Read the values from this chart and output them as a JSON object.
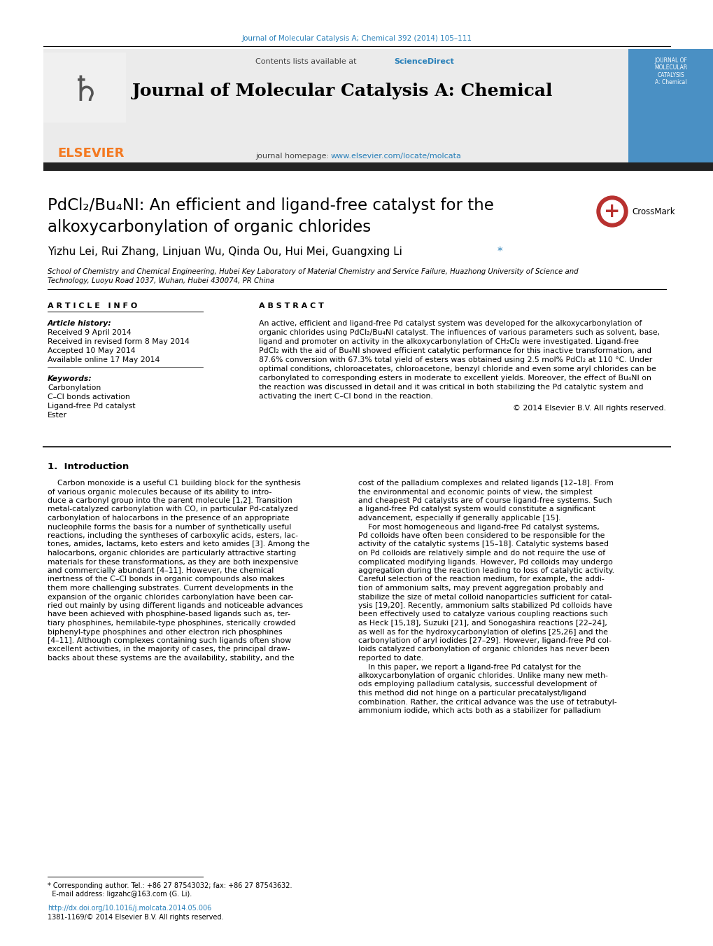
{
  "journal_citation": "Journal of Molecular Catalysis A; Chemical 392 (2014) 105–111",
  "journal_name": "Journal of Molecular Catalysis A: Chemical",
  "journal_homepage": "journal homepage: www.elsevier.com/locate/molcata",
  "contents_line": "Contents lists available at ScienceDirect",
  "article_title_line1": "PdCl₂/Bu₄NI: An efficient and ligand-free catalyst for the",
  "article_title_line2": "alkoxycarbonylation of organic chlorides",
  "authors": "Yizhu Lei, Rui Zhang, Linjuan Wu, Qinda Ou, Hui Mei, Guangxing Li",
  "affiliation_line1": "School of Chemistry and Chemical Engineering, Hubei Key Laboratory of Material Chemistry and Service Failure, Huazhong University of Science and",
  "affiliation_line2": "Technology, Luoyu Road 1037, Wuhan, Hubei 430074, PR China",
  "article_info_header": "A R T I C L E   I N F O",
  "abstract_header": "A B S T R A C T",
  "article_history_label": "Article history:",
  "received": "Received 9 April 2014",
  "received_revised": "Received in revised form 8 May 2014",
  "accepted": "Accepted 10 May 2014",
  "available": "Available online 17 May 2014",
  "keywords_label": "Keywords:",
  "keywords": [
    "Carbonylation",
    "C–Cl bonds activation",
    "Ligand-free Pd catalyst",
    "Ester"
  ],
  "abstract_lines": [
    "An active, efficient and ligand-free Pd catalyst system was developed for the alkoxycarbonylation of",
    "organic chlorides using PdCl₂/Bu₄NI catalyst. The influences of various parameters such as solvent, base,",
    "ligand and promoter on activity in the alkoxycarbonylation of CH₂Cl₂ were investigated. Ligand-free",
    "PdCl₂ with the aid of Bu₄NI showed efficient catalytic performance for this inactive transformation, and",
    "87.6% conversion with 67.3% total yield of esters was obtained using 2.5 mol% PdCl₂ at 110 °C. Under",
    "optimal conditions, chloroacetates, chloroacetone, benzyl chloride and even some aryl chlorides can be",
    "carbonylated to corresponding esters in moderate to excellent yields. Moreover, the effect of Bu₄NI on",
    "the reaction was discussed in detail and it was critical in both stabilizing the Pd catalytic system and",
    "activating the inert C–Cl bond in the reaction."
  ],
  "copyright": "© 2014 Elsevier B.V. All rights reserved.",
  "section1_header": "1.  Introduction",
  "col1_lines": [
    "    Carbon monoxide is a useful C1 building block for the synthesis",
    "of various organic molecules because of its ability to intro-",
    "duce a carbonyl group into the parent molecule [1,2]. Transition",
    "metal-catalyzed carbonylation with CO, in particular Pd-catalyzed",
    "carbonylation of halocarbons in the presence of an appropriate",
    "nucleophile forms the basis for a number of synthetically useful",
    "reactions, including the syntheses of carboxylic acids, esters, lac-",
    "tones, amides, lactams, keto esters and keto amides [3]. Among the",
    "halocarbons, organic chlorides are particularly attractive starting",
    "materials for these transformations, as they are both inexpensive",
    "and commercially abundant [4–11]. However, the chemical",
    "inertness of the C–Cl bonds in organic compounds also makes",
    "them more challenging substrates. Current developments in the",
    "expansion of the organic chlorides carbonylation have been car-",
    "ried out mainly by using different ligands and noticeable advances",
    "have been achieved with phosphine-based ligands such as, ter-",
    "tiary phosphines, hemilabile-type phosphines, sterically crowded",
    "biphenyl-type phosphines and other electron rich phosphines",
    "[4–11]. Although complexes containing such ligands often show",
    "excellent activities, in the majority of cases, the principal draw-",
    "backs about these systems are the availability, stability, and the"
  ],
  "col2_lines": [
    "cost of the palladium complexes and related ligands [12–18]. From",
    "the environmental and economic points of view, the simplest",
    "and cheapest Pd catalysts are of course ligand-free systems. Such",
    "a ligand-free Pd catalyst system would constitute a significant",
    "advancement, especially if generally applicable [15].",
    "    For most homogeneous and ligand-free Pd catalyst systems,",
    "Pd colloids have often been considered to be responsible for the",
    "activity of the catalytic systems [15–18]. Catalytic systems based",
    "on Pd colloids are relatively simple and do not require the use of",
    "complicated modifying ligands. However, Pd colloids may undergo",
    "aggregation during the reaction leading to loss of catalytic activity.",
    "Careful selection of the reaction medium, for example, the addi-",
    "tion of ammonium salts, may prevent aggregation probably and",
    "stabilize the size of metal colloid nanoparticles sufficient for catal-",
    "ysis [19,20]. Recently, ammonium salts stabilized Pd colloids have",
    "been effectively used to catalyze various coupling reactions such",
    "as Heck [15,18], Suzuki [21], and Sonogashira reactions [22–24],",
    "as well as for the hydroxycarbonylation of olefins [25,26] and the",
    "carbonylation of aryl iodides [27–29]. However, ligand-free Pd col-",
    "loids catalyzed carbonylation of organic chlorides has never been",
    "reported to date.",
    "    In this paper, we report a ligand-free Pd catalyst for the",
    "alkoxycarbonylation of organic chlorides. Unlike many new meth-",
    "ods employing palladium catalysis, successful development of",
    "this method did not hinge on a particular precatalyst/ligand",
    "combination. Rather, the critical advance was the use of tetrabutyl-",
    "ammonium iodide, which acts both as a stabilizer for palladium"
  ],
  "footer_star": "* Corresponding author. Tel.: +86 27 87543032; fax: +86 27 87543632.",
  "footer_email": "  E-mail address: ligzahc@163.com (G. Li).",
  "footer_doi": "http://dx.doi.org/10.1016/j.molcata.2014.05.006",
  "footer_issn": "1381-1169/© 2014 Elsevier B.V. All rights reserved.",
  "bg_color": "#ffffff",
  "header_bg": "#ebebeb",
  "dark_bar_color": "#222222",
  "elsevier_orange": "#f47920",
  "link_color": "#2980b9",
  "cover_blue": "#4a90c4"
}
